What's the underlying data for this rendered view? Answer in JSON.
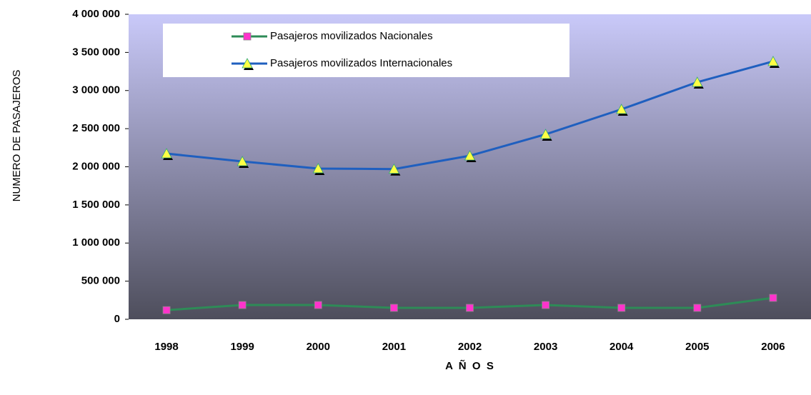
{
  "chart_data": {
    "type": "line",
    "categories": [
      "1998",
      "1999",
      "2000",
      "2001",
      "2002",
      "2003",
      "2004",
      "2005",
      "2006"
    ],
    "series": [
      {
        "name": "Pasajeros movilizados Nacionales",
        "color": "#2e8b57",
        "marker_color": "#ff33cc",
        "marker": "square",
        "values": [
          120000,
          187000,
          187000,
          150000,
          150000,
          187000,
          150000,
          150000,
          281000
        ]
      },
      {
        "name": "Pasajeros movilizados Internacionales",
        "color": "#1f5fbf",
        "marker_color": "#ffff44",
        "marker": "triangle",
        "values": [
          2173000,
          2070000,
          1977000,
          1970000,
          2145000,
          2426000,
          2754000,
          3110000,
          3382000
        ]
      }
    ],
    "ylabel": "NUMERO DE PASAJEROS",
    "xlabel": "A  Ñ  O  S",
    "ylim": [
      0,
      4000000
    ],
    "yticks": [
      0,
      {
        "value": 500000,
        "label": "500 000"
      },
      {
        "value": 1000000,
        "label": "1 000 000"
      },
      {
        "value": 1500000,
        "label": "1 500 000"
      },
      {
        "value": 2000000,
        "label": "2 000 000"
      },
      {
        "value": 2500000,
        "label": "2 500 000"
      },
      {
        "value": 3000000,
        "label": "3 000 000"
      },
      {
        "value": 3500000,
        "label": "3 500 000"
      },
      {
        "value": 4000000,
        "label": "4 000 000"
      }
    ],
    "grid": false,
    "legend": "upper left"
  }
}
